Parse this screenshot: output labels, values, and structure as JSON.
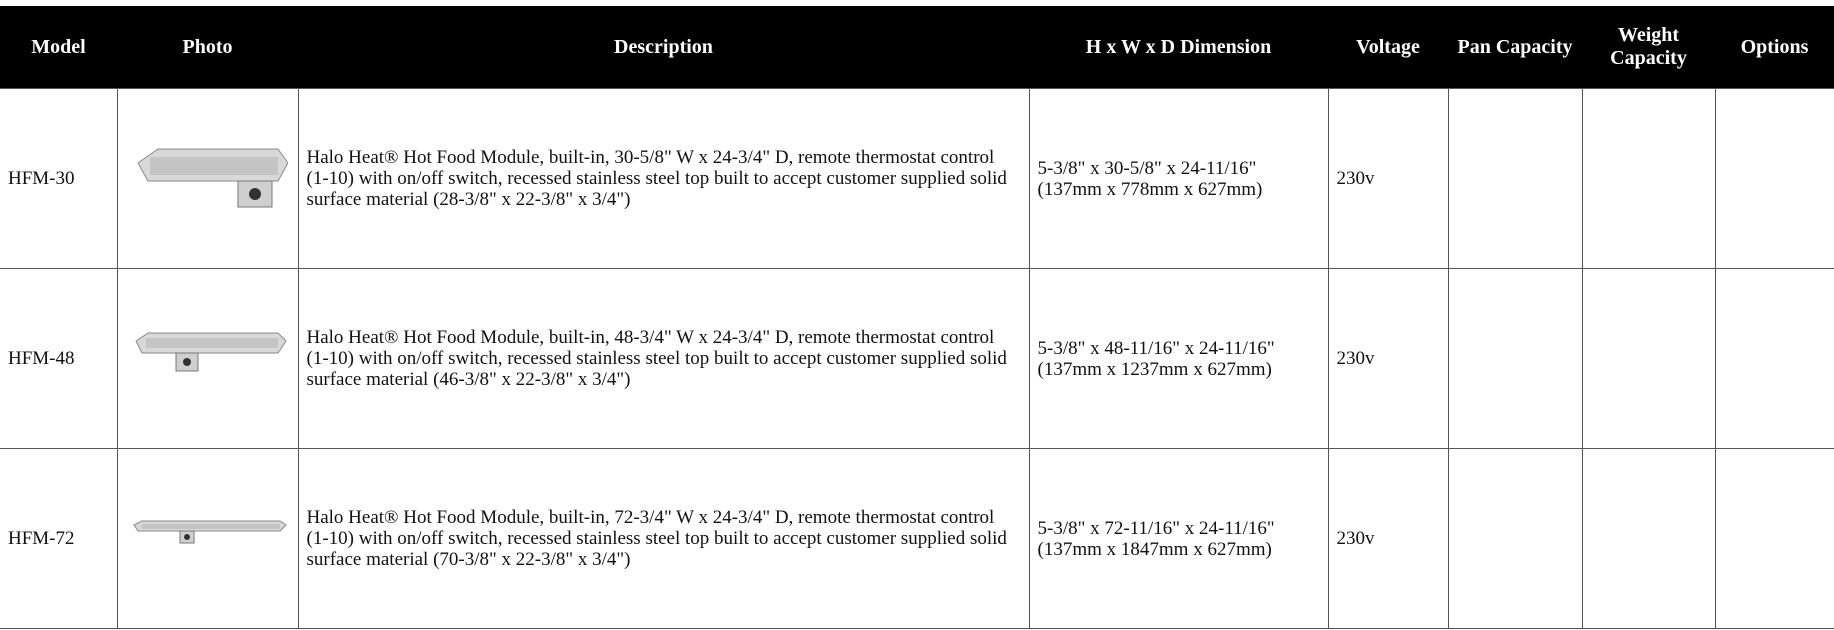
{
  "table": {
    "columns": [
      "Model",
      "Photo",
      "Description",
      "H x W x D Dimension",
      "Voltage",
      "Pan Capacity",
      "Weight Capacity",
      "Options"
    ],
    "rows": [
      {
        "model": "HFM-30",
        "description": "Halo Heat® Hot Food Module, built-in, 30-5/8\" W x 24-3/4\" D, remote thermostat control (1-10) with on/off switch, recessed stainless steel top built to accept customer supplied solid surface material (28-3/8\" x 22-3/8\" x 3/4\")",
        "dimension": [
          "5-3/8\" x 30-5/8\" x 24-11/16\"",
          "(137mm x 778mm x 627mm)"
        ],
        "voltage": "230v"
      },
      {
        "model": "HFM-48",
        "description": "Halo Heat® Hot Food Module, built-in, 48-3/4\" W x 24-3/4\" D, remote thermostat control (1-10) with on/off switch, recessed stainless steel top built to accept customer supplied solid surface material (46-3/8\" x 22-3/8\" x 3/4\")",
        "dimension": [
          "5-3/8\" x 48-11/16\" x 24-11/16\"",
          "(137mm x 1237mm x 627mm)"
        ],
        "voltage": "230v"
      },
      {
        "model": "HFM-72",
        "description": "Halo Heat® Hot Food Module, built-in, 72-3/4\" W x 24-3/4\" D, remote thermostat control (1-10) with on/off switch, recessed stainless steel top built to accept customer supplied solid surface material (70-3/8\" x 22-3/8\" x 3/4\")",
        "dimension": [
          "5-3/8\" x 72-11/16\" x 24-11/16\"",
          "(137mm x 1847mm x 627mm)"
        ],
        "voltage": "230v"
      }
    ]
  }
}
